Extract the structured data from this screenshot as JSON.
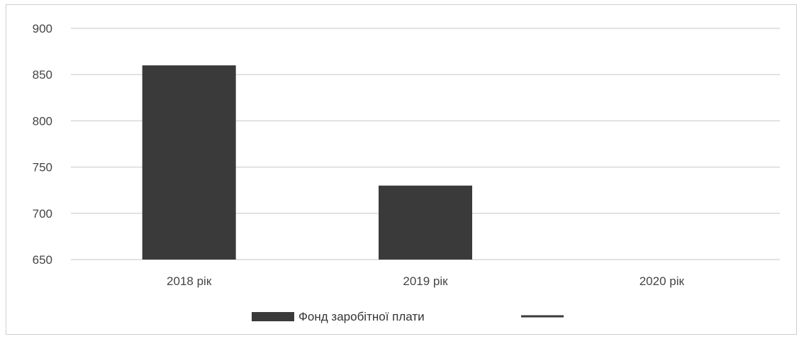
{
  "chart_data": {
    "type": "bar",
    "categories": [
      "2018 рік",
      "2019 рік",
      "2020 рік"
    ],
    "series": [
      {
        "name": "Фонд заробітної плати",
        "values": [
          860,
          730,
          null
        ],
        "color": "#3a3a3a"
      },
      {
        "name": "",
        "values": [
          null,
          null,
          null
        ],
        "type": "line",
        "color": "#3a3a3a"
      }
    ],
    "ylim": [
      650,
      900
    ],
    "yticks": [
      650,
      700,
      750,
      800,
      850,
      900
    ],
    "ytick_labels": [
      "650",
      "700",
      "750",
      "800",
      "850",
      "900"
    ],
    "grid": true,
    "legend_position": "bottom",
    "gridline_color": "#d9d9d9"
  }
}
